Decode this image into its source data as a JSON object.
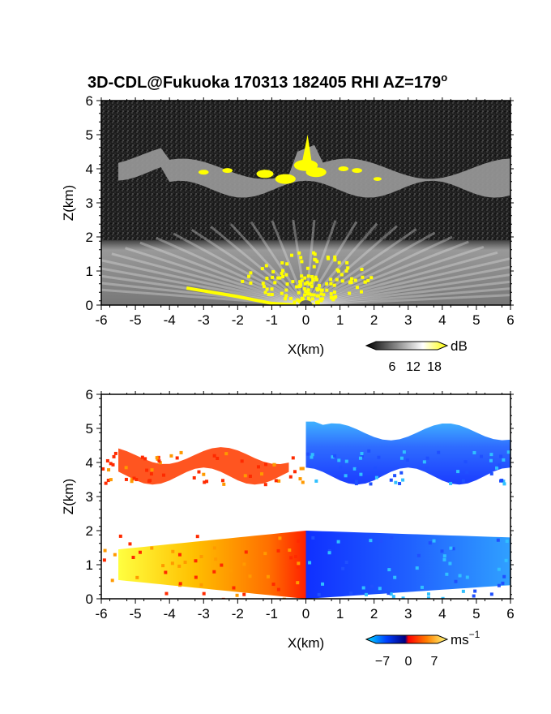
{
  "title": "3D-CDL@Fukuoka 170313 182405 RHI AZ=179",
  "title_superscript": "o",
  "chart_data": [
    {
      "type": "heatmap",
      "name": "backscatter",
      "xlabel": "X(km)",
      "ylabel": "Z(km)",
      "xlim": [
        -6,
        6
      ],
      "ylim": [
        0,
        6
      ],
      "x_ticks": [
        "-6",
        "-5",
        "-4",
        "-3",
        "-2",
        "-1",
        "0",
        "1",
        "2",
        "3",
        "4",
        "5",
        "6"
      ],
      "y_ticks": [
        "0",
        "1",
        "2",
        "3",
        "4",
        "5",
        "6"
      ],
      "colorbar": {
        "unit": "dB",
        "tick_labels": [
          "6",
          "12",
          "18"
        ],
        "range": [
          0,
          20
        ],
        "colors": [
          "#000000",
          "#ffffff",
          "#ffff00"
        ]
      },
      "features": [
        {
          "label": "cloud layer",
          "z_range": [
            3.0,
            4.6
          ],
          "x_range": [
            -5.5,
            6
          ]
        },
        {
          "label": "boundary layer",
          "z_range": [
            0,
            1.9
          ],
          "x_range": [
            -6,
            6
          ]
        }
      ]
    },
    {
      "type": "heatmap",
      "name": "doppler velocity",
      "xlabel": "X(km)",
      "ylabel": "Z(km)",
      "xlim": [
        -6,
        6
      ],
      "ylim": [
        0,
        6
      ],
      "x_ticks": [
        "-6",
        "-5",
        "-4",
        "-3",
        "-2",
        "-1",
        "0",
        "1",
        "2",
        "3",
        "4",
        "5",
        "6"
      ],
      "y_ticks": [
        "0",
        "1",
        "2",
        "3",
        "4",
        "5",
        "6"
      ],
      "colorbar": {
        "unit": "ms",
        "unit_superscript": "−1",
        "tick_labels": [
          "−7",
          "0",
          "7"
        ],
        "range": [
          -10,
          10
        ],
        "colors": [
          "#00e0ff",
          "#0040ff",
          "#000080",
          "#ff0000",
          "#ff8000",
          "#ffff80"
        ]
      },
      "features": [
        {
          "label": "upper layer positive",
          "x_range": [
            -5.5,
            -0.5
          ],
          "z_range": [
            3.3,
            4.5
          ]
        },
        {
          "label": "upper layer negative",
          "x_range": [
            0,
            6
          ],
          "z_range": [
            3.3,
            5.2
          ]
        },
        {
          "label": "lower layer positive",
          "x_range": [
            -5.5,
            0
          ],
          "z_range": [
            0,
            2.0
          ]
        },
        {
          "label": "lower layer negative",
          "x_range": [
            0,
            6
          ],
          "z_range": [
            0,
            2.0
          ]
        }
      ]
    }
  ]
}
